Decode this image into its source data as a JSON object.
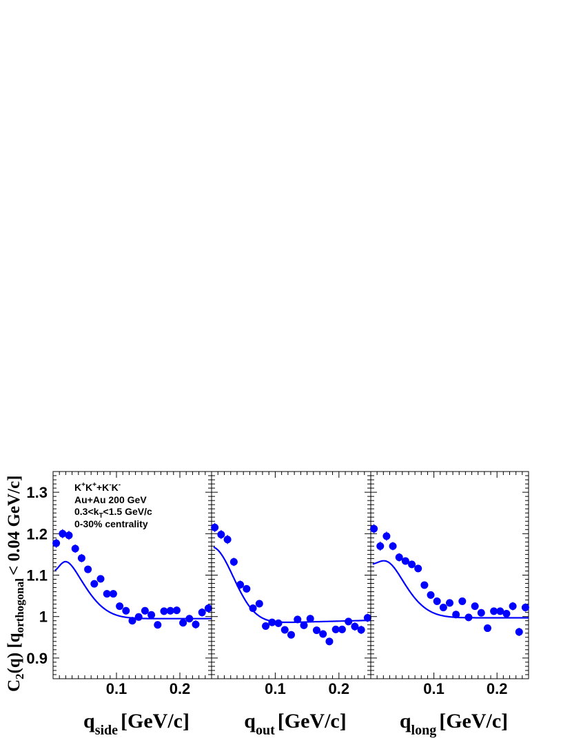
{
  "colors": {
    "marker": "#0000ff",
    "fit": "#0000ff",
    "frame": "#000000"
  },
  "ylabel": {
    "prefix": "C",
    "sub1": "2",
    "mid": "(q) [q",
    "sub2": "orthogonal",
    "suffix": "< 0.04 GeV/c]"
  },
  "annotation": {
    "line1_k1": "K",
    "line1_s1": "+",
    "line1_k2": "K",
    "line1_s2": "+",
    "line1_plus": "+K",
    "line1_s3": "-",
    "line1_k4": "K",
    "line1_s4": "-",
    "line2": "Au+Au 200 GeV",
    "line3_a": "0.3<k",
    "line3_sub": "T",
    "line3_b": "<1.5 GeV/c",
    "line4": "0-30% centrality"
  },
  "chart_data": [
    {
      "type": "scatter",
      "xlabel_var": "q",
      "xlabel_sub": "side",
      "xlabel_unit": "[GeV/c]",
      "xlim": [
        0,
        0.25
      ],
      "ylim": [
        0.85,
        1.35
      ],
      "xticks": [
        "0.1",
        "0.2"
      ],
      "yticks": [
        "0.9",
        "1",
        "1.1",
        "1.2",
        "1.3"
      ],
      "series": [
        {
          "x": [
            0.005,
            0.015,
            0.025,
            0.035,
            0.045,
            0.055,
            0.065,
            0.075,
            0.085,
            0.095,
            0.105,
            0.115,
            0.125,
            0.135,
            0.145,
            0.155,
            0.165,
            0.175,
            0.185,
            0.195,
            0.205,
            0.215,
            0.225,
            0.235,
            0.245
          ],
          "y": [
            1.177,
            1.2,
            1.196,
            1.164,
            1.141,
            1.114,
            1.079,
            1.091,
            1.055,
            1.055,
            1.025,
            1.014,
            0.99,
            0.999,
            1.014,
            1.004,
            0.98,
            1.013,
            1.014,
            1.015,
            0.985,
            0.995,
            0.981,
            1.01,
            1.02
          ],
          "err": [
            0.011,
            0.011,
            0.011,
            0.01,
            0.01,
            0.009,
            0.009,
            0.009,
            0.009,
            0.009,
            0.009,
            0.009,
            0.009,
            0.009,
            0.009,
            0.009,
            0.009,
            0.009,
            0.009,
            0.009,
            0.009,
            0.009,
            0.01,
            0.01,
            0.01
          ]
        }
      ],
      "fit": {
        "lambda": 0.168,
        "r": 0.058,
        "norm": 0.995,
        "dip_amp": 0.052,
        "dip_x0": 0.0,
        "dip_w": 0.016
      }
    },
    {
      "type": "scatter",
      "xlabel_var": "q",
      "xlabel_sub": "out",
      "xlabel_unit": "[GeV/c]",
      "xlim": [
        0,
        0.25
      ],
      "ylim": [
        0.85,
        1.35
      ],
      "xticks": [
        "0.1",
        "0.2"
      ],
      "yticks": [
        "0.9",
        "1",
        "1.1",
        "1.2",
        "1.3"
      ],
      "series": [
        {
          "x": [
            0.005,
            0.015,
            0.025,
            0.035,
            0.045,
            0.055,
            0.065,
            0.075,
            0.085,
            0.095,
            0.105,
            0.115,
            0.125,
            0.135,
            0.145,
            0.155,
            0.165,
            0.175,
            0.185,
            0.195,
            0.205,
            0.215,
            0.225,
            0.235,
            0.245
          ],
          "y": [
            1.215,
            1.198,
            1.186,
            1.132,
            1.077,
            1.067,
            1.02,
            1.031,
            0.977,
            0.986,
            0.984,
            0.968,
            0.956,
            0.993,
            0.979,
            0.995,
            0.967,
            0.958,
            0.94,
            0.969,
            0.969,
            0.988,
            0.976,
            0.968,
            0.997
          ],
          "err": [
            0.011,
            0.011,
            0.011,
            0.01,
            0.01,
            0.009,
            0.009,
            0.009,
            0.009,
            0.009,
            0.009,
            0.009,
            0.009,
            0.009,
            0.009,
            0.009,
            0.009,
            0.009,
            0.009,
            0.009,
            0.009,
            0.009,
            0.01,
            0.01,
            0.01
          ]
        }
      ],
      "fit": {
        "lambda": 0.186,
        "r": 0.048,
        "norm": 0.985,
        "dip_amp": 0.0,
        "dip_x0": 0.0,
        "dip_w": 0.016,
        "slope": 0.04
      }
    },
    {
      "type": "scatter",
      "xlabel_var": "q",
      "xlabel_sub": "long",
      "xlabel_unit": "[GeV/c]",
      "xlim": [
        0,
        0.25
      ],
      "ylim": [
        0.85,
        1.35
      ],
      "xticks": [
        "0.1",
        "0.2"
      ],
      "yticks": [
        "0.9",
        "1",
        "1.1",
        "1.2",
        "1.3"
      ],
      "series": [
        {
          "x": [
            0.005,
            0.015,
            0.025,
            0.035,
            0.045,
            0.055,
            0.065,
            0.075,
            0.085,
            0.095,
            0.105,
            0.115,
            0.125,
            0.135,
            0.145,
            0.155,
            0.165,
            0.175,
            0.185,
            0.195,
            0.205,
            0.215,
            0.225,
            0.235,
            0.245
          ],
          "y": [
            1.212,
            1.17,
            1.194,
            1.17,
            1.143,
            1.134,
            1.126,
            1.116,
            1.076,
            1.052,
            1.037,
            1.022,
            1.033,
            1.005,
            1.037,
            0.998,
            1.025,
            1.009,
            0.972,
            1.013,
            1.013,
            1.007,
            1.025,
            0.963,
            1.022
          ],
          "err": [
            0.011,
            0.011,
            0.011,
            0.01,
            0.01,
            0.009,
            0.009,
            0.009,
            0.009,
            0.009,
            0.009,
            0.009,
            0.009,
            0.009,
            0.009,
            0.009,
            0.009,
            0.009,
            0.009,
            0.009,
            0.009,
            0.009,
            0.01,
            0.01,
            0.01
          ]
        }
      ],
      "fit": {
        "lambda": 0.185,
        "r": 0.06,
        "norm": 0.997,
        "dip_amp": 0.055,
        "dip_x0": 0.0,
        "dip_w": 0.024
      }
    }
  ]
}
